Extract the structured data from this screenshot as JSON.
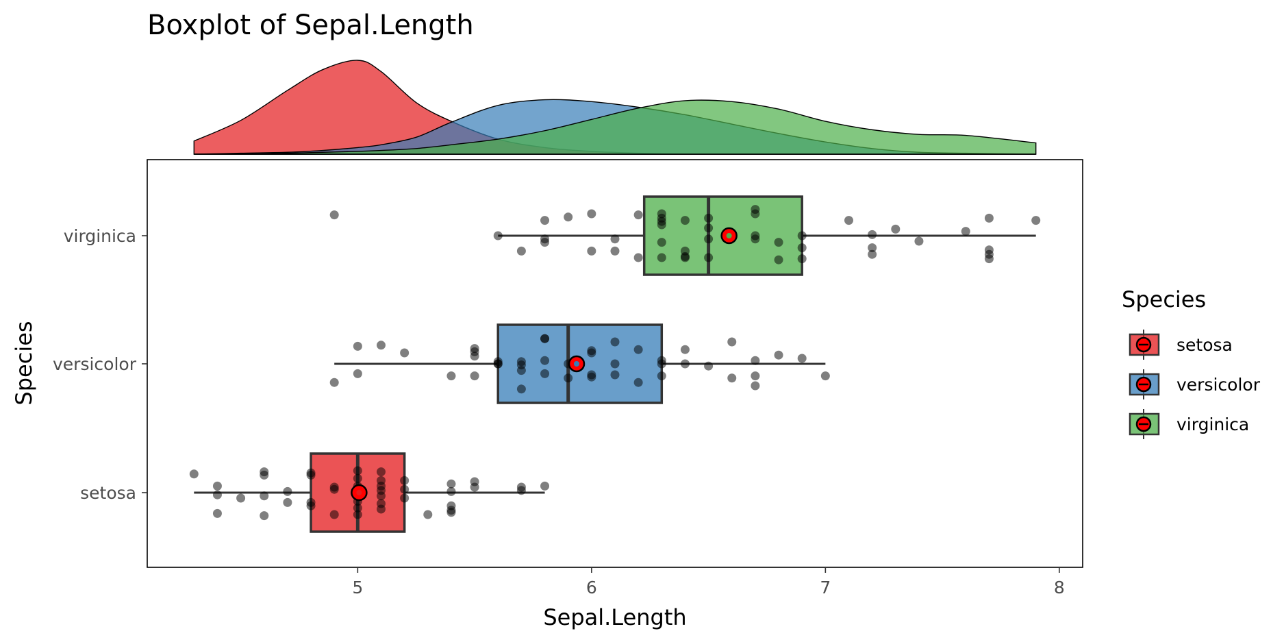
{
  "chart_data": {
    "type": "boxplot",
    "title": "Boxplot of Sepal.Length",
    "xlabel": "Sepal.Length",
    "ylabel": "Species",
    "xlim": [
      4.1,
      8.1
    ],
    "x_ticks": [
      5,
      6,
      7,
      8
    ],
    "categories": [
      "setosa",
      "versicolor",
      "virginica"
    ],
    "legend": {
      "title": "Species",
      "position": "right"
    },
    "colors": {
      "setosa": "#E41A1C",
      "versicolor": "#377EB8",
      "virginica": "#4DAF4A",
      "mean_marker": "#ff0000"
    },
    "series": [
      {
        "name": "setosa",
        "box": {
          "min": 4.3,
          "q1": 4.8,
          "median": 5.0,
          "q3": 5.2,
          "max": 5.8
        },
        "mean": 5.006,
        "points": [
          [
            4.3,
            0.17
          ],
          [
            4.4,
            0.06
          ],
          [
            4.4,
            -0.02
          ],
          [
            4.4,
            -0.19
          ],
          [
            4.5,
            -0.05
          ],
          [
            4.6,
            0.19
          ],
          [
            4.6,
            0.16
          ],
          [
            4.6,
            -0.03
          ],
          [
            4.6,
            -0.21
          ],
          [
            4.7,
            -0.09
          ],
          [
            4.7,
            0.01
          ],
          [
            4.8,
            0.18
          ],
          [
            4.8,
            0.16
          ],
          [
            4.8,
            -0.09
          ],
          [
            4.8,
            -0.12
          ],
          [
            4.9,
            0.05
          ],
          [
            4.9,
            0.03
          ],
          [
            4.9,
            -0.2
          ],
          [
            5.0,
            0.2
          ],
          [
            5.0,
            0.13
          ],
          [
            5.0,
            0.06
          ],
          [
            5.0,
            -0.03
          ],
          [
            5.0,
            -0.08
          ],
          [
            5.0,
            -0.14
          ],
          [
            5.0,
            -0.2
          ],
          [
            5.1,
            0.19
          ],
          [
            5.1,
            0.11
          ],
          [
            5.1,
            0.06
          ],
          [
            5.1,
            0.02
          ],
          [
            5.1,
            -0.03
          ],
          [
            5.1,
            -0.1
          ],
          [
            5.1,
            -0.15
          ],
          [
            5.2,
            0.11
          ],
          [
            5.2,
            0.03
          ],
          [
            5.2,
            -0.05
          ],
          [
            5.3,
            -0.2
          ],
          [
            5.4,
            0.08
          ],
          [
            5.4,
            -0.12
          ],
          [
            5.4,
            -0.16
          ],
          [
            5.4,
            -0.18
          ],
          [
            5.4,
            0.01
          ],
          [
            5.5,
            0.1
          ],
          [
            5.5,
            0.05
          ],
          [
            5.7,
            0.05
          ],
          [
            5.7,
            0.02
          ],
          [
            5.8,
            0.06
          ]
        ]
      },
      {
        "name": "versicolor",
        "box": {
          "min": 4.9,
          "q1": 5.6,
          "median": 5.9,
          "q3": 6.3,
          "max": 7.0
        },
        "mean": 5.936,
        "points": [
          [
            4.9,
            -0.17
          ],
          [
            5.0,
            0.16
          ],
          [
            5.0,
            -0.09
          ],
          [
            5.1,
            0.17
          ],
          [
            5.2,
            0.1
          ],
          [
            5.4,
            -0.11
          ],
          [
            5.5,
            0.14
          ],
          [
            5.5,
            0.11
          ],
          [
            5.5,
            0.07
          ],
          [
            5.5,
            -0.11
          ],
          [
            5.6,
            0.0
          ],
          [
            5.6,
            0.02
          ],
          [
            5.6,
            0.0
          ],
          [
            5.7,
            0.02
          ],
          [
            5.7,
            -0.01
          ],
          [
            5.7,
            -0.06
          ],
          [
            5.7,
            -0.23
          ],
          [
            5.8,
            0.23
          ],
          [
            5.8,
            0.03
          ],
          [
            5.8,
            -0.09
          ],
          [
            5.8,
            0.23
          ],
          [
            5.9,
            0.0
          ],
          [
            5.9,
            -0.13
          ],
          [
            6.0,
            0.12
          ],
          [
            6.0,
            0.1
          ],
          [
            6.0,
            -0.1
          ],
          [
            6.0,
            -0.12
          ],
          [
            6.1,
            0.2
          ],
          [
            6.1,
            0.0
          ],
          [
            6.1,
            -0.1
          ],
          [
            6.2,
            0.13
          ],
          [
            6.2,
            -0.17
          ],
          [
            6.3,
            0.03
          ],
          [
            6.3,
            0.0
          ],
          [
            6.3,
            -0.11
          ],
          [
            6.4,
            0.13
          ],
          [
            6.4,
            0.0
          ],
          [
            6.5,
            -0.02
          ],
          [
            6.6,
            0.2
          ],
          [
            6.6,
            -0.13
          ],
          [
            6.7,
            0.03
          ],
          [
            6.7,
            -0.11
          ],
          [
            6.7,
            -0.2
          ],
          [
            6.8,
            0.08
          ],
          [
            6.9,
            0.05
          ],
          [
            7.0,
            -0.11
          ]
        ]
      },
      {
        "name": "virginica",
        "box": {
          "min": 5.6,
          "q1": 6.225,
          "median": 6.5,
          "q3": 6.9,
          "max": 7.9
        },
        "mean": 6.588,
        "points": [
          [
            4.9,
            0.19
          ],
          [
            5.6,
            0.0
          ],
          [
            5.7,
            -0.14
          ],
          [
            5.8,
            0.14
          ],
          [
            5.8,
            -0.03
          ],
          [
            5.8,
            -0.06
          ],
          [
            5.9,
            0.17
          ],
          [
            6.0,
            0.2
          ],
          [
            6.0,
            -0.14
          ],
          [
            6.1,
            -0.03
          ],
          [
            6.1,
            -0.14
          ],
          [
            6.2,
            0.19
          ],
          [
            6.2,
            -0.2
          ],
          [
            6.3,
            0.2
          ],
          [
            6.3,
            0.16
          ],
          [
            6.3,
            0.13
          ],
          [
            6.3,
            0.1
          ],
          [
            6.3,
            -0.06
          ],
          [
            6.3,
            -0.2
          ],
          [
            6.4,
            0.14
          ],
          [
            6.4,
            -0.14
          ],
          [
            6.4,
            -0.19
          ],
          [
            6.4,
            -0.2
          ],
          [
            6.5,
            0.16
          ],
          [
            6.5,
            0.07
          ],
          [
            6.5,
            -0.03
          ],
          [
            6.5,
            -0.2
          ],
          [
            6.7,
            0.24
          ],
          [
            6.7,
            0.2
          ],
          [
            6.7,
            -0.03
          ],
          [
            6.7,
            0.0
          ],
          [
            6.8,
            -0.22
          ],
          [
            6.8,
            -0.06
          ],
          [
            6.9,
            0.0
          ],
          [
            6.9,
            -0.11
          ],
          [
            6.9,
            -0.21
          ],
          [
            7.1,
            0.14
          ],
          [
            7.2,
            -0.17
          ],
          [
            7.2,
            -0.11
          ],
          [
            7.2,
            0.01
          ],
          [
            7.3,
            0.06
          ],
          [
            7.4,
            -0.05
          ],
          [
            7.6,
            0.04
          ],
          [
            7.7,
            0.16
          ],
          [
            7.7,
            -0.13
          ],
          [
            7.7,
            -0.17
          ],
          [
            7.7,
            -0.21
          ],
          [
            7.9,
            0.14
          ]
        ]
      }
    ],
    "density": {
      "x": [
        4.3,
        4.5,
        4.7,
        4.85,
        5.0,
        5.1,
        5.25,
        5.4,
        5.6,
        5.8,
        6.0,
        6.2,
        6.4,
        6.6,
        6.8,
        7.0,
        7.2,
        7.4,
        7.6,
        7.9
      ],
      "setosa": [
        0.14,
        0.36,
        0.68,
        0.9,
        1.0,
        0.88,
        0.55,
        0.35,
        0.16,
        0.07,
        0.03,
        0.01,
        0.0,
        0.0,
        0.0,
        0.0,
        0.0,
        0.0,
        0.0,
        0.0
      ],
      "versicolor": [
        0.0,
        0.01,
        0.02,
        0.04,
        0.07,
        0.1,
        0.18,
        0.34,
        0.52,
        0.58,
        0.56,
        0.5,
        0.42,
        0.32,
        0.22,
        0.13,
        0.06,
        0.02,
        0.01,
        0.0
      ],
      "virginica": [
        0.0,
        0.0,
        0.01,
        0.02,
        0.03,
        0.04,
        0.06,
        0.1,
        0.16,
        0.25,
        0.37,
        0.49,
        0.57,
        0.56,
        0.48,
        0.35,
        0.26,
        0.21,
        0.2,
        0.12
      ]
    }
  }
}
